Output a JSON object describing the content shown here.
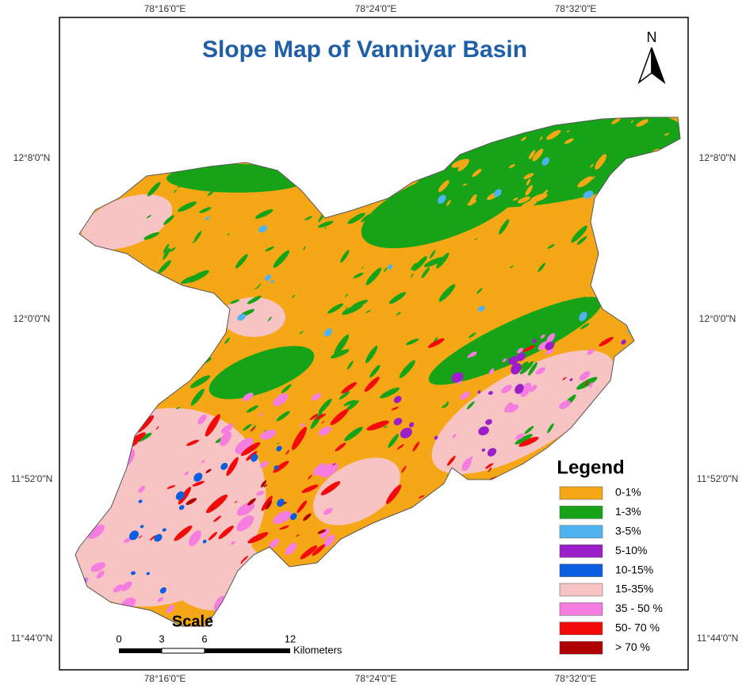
{
  "title": "Slope Map of Vanniyar Basin",
  "north_label": "N",
  "graticule": {
    "longitudes": [
      "78°16'0\"E",
      "78°24'0\"E",
      "78°32'0\"E"
    ],
    "latitudes": [
      "12°8'0\"N",
      "12°0'0\"N",
      "11°52'0\"N",
      "11°44'0\"N"
    ]
  },
  "legend": {
    "title": "Legend",
    "items": [
      {
        "label": "0-1%",
        "color": "#f5a716"
      },
      {
        "label": "1-3%",
        "color": "#17a317"
      },
      {
        "label": "3-5%",
        "color": "#4fb3f2"
      },
      {
        "label": "5-10%",
        "color": "#9b1fc9"
      },
      {
        "label": "10-15%",
        "color": "#0a5ee0"
      },
      {
        "label": "15-35%",
        "color": "#f7c3c3"
      },
      {
        "label": "35 - 50 %",
        "color": "#f57de0"
      },
      {
        "label": "50- 70 %",
        "color": "#f50a0a"
      },
      {
        "label": "> 70 %",
        "color": "#b00000"
      }
    ]
  },
  "scale": {
    "title": "Scale",
    "ticks": [
      "0",
      "3",
      "6",
      "12"
    ],
    "unit": "Kilometers"
  }
}
